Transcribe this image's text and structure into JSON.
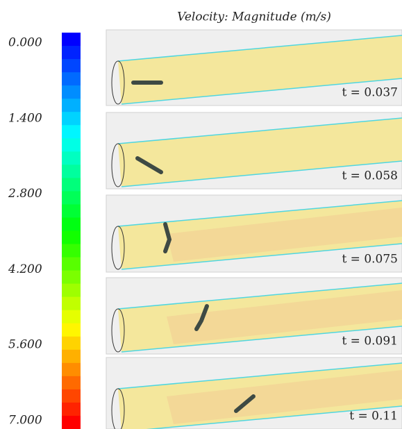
{
  "title": "Velocity: Magnitude (m/s)",
  "colorbar": {
    "ticks": [
      "0.000",
      "1.400",
      "2.800",
      "4.200",
      "5.600",
      "7.000"
    ]
  },
  "panels": [
    {
      "label": "t = 0.037"
    },
    {
      "label": "t = 0.058"
    },
    {
      "label": "t = 0.075"
    },
    {
      "label": "t = 0.091"
    },
    {
      "label": "t = 0.11"
    }
  ]
}
